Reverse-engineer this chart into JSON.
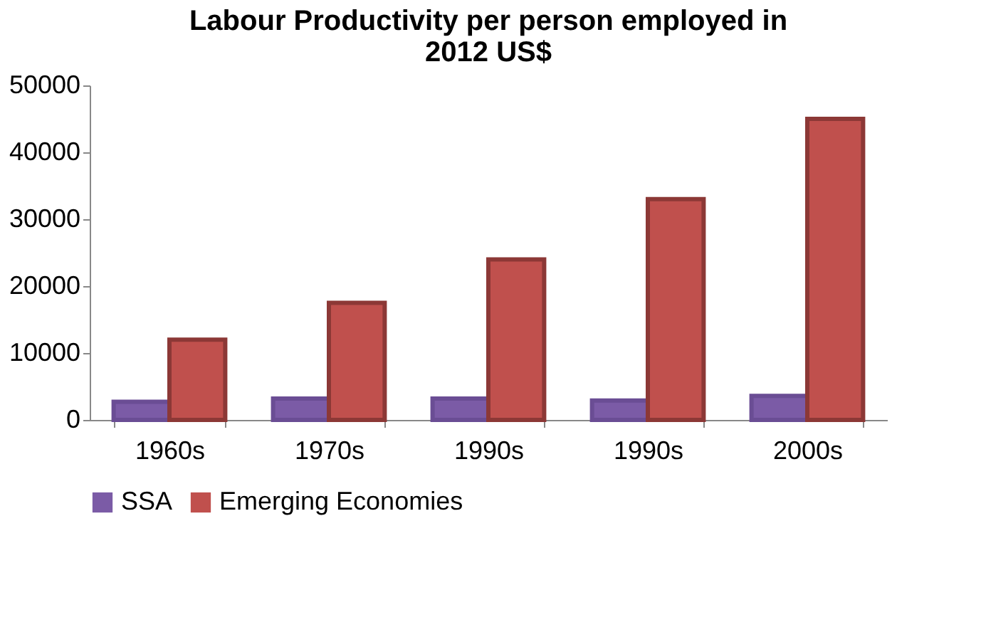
{
  "chart_data": {
    "type": "bar",
    "title": "Labour Productivity per person employed in 2012 US$",
    "categories": [
      "1960s",
      "1970s",
      "1990s",
      "1990s",
      "2000s"
    ],
    "series": [
      {
        "name": "SSA",
        "color": "#7b5ba6",
        "values": [
          2700,
          3200,
          3200,
          2900,
          3600
        ]
      },
      {
        "name": "Emerging Economies",
        "color": "#c0504d",
        "values": [
          12000,
          17500,
          24000,
          33000,
          45000
        ]
      }
    ],
    "ylim": [
      0,
      50000
    ],
    "yticks": [
      0,
      10000,
      20000,
      30000,
      40000,
      50000
    ],
    "grid": false,
    "legend": "bottom"
  }
}
